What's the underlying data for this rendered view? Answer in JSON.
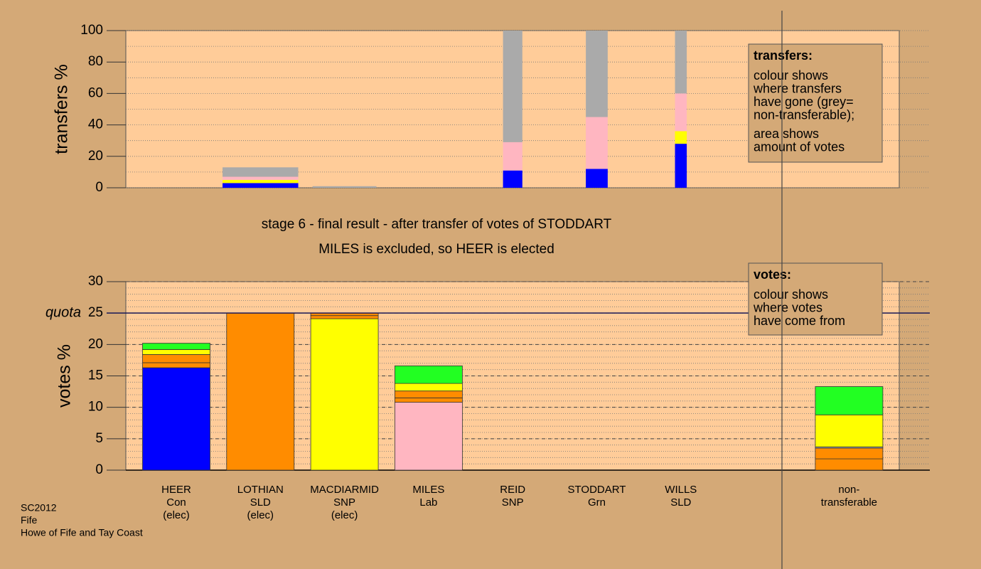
{
  "chart_data": [
    {
      "type": "bar",
      "stacked": true,
      "ylabel": "transfers %",
      "ylim": [
        0,
        100
      ],
      "yticks": [
        0,
        20,
        40,
        60,
        80,
        100
      ],
      "minor_step": 10,
      "amounts": [
        null,
        0.9,
        0.76,
        null,
        0.23,
        0.26,
        0.14,
        null,
        null
      ],
      "segments": [
        null,
        [
          {
            "color": "#0000ff",
            "value": 3
          },
          {
            "color": "#ffff00",
            "value": 2
          },
          {
            "color": "#ffb6c1",
            "value": 2
          },
          {
            "color": "#aaaaaa",
            "value": 6
          }
        ],
        [
          {
            "color": "#aaaaaa",
            "value": 1
          }
        ],
        null,
        [
          {
            "color": "#0000ff",
            "value": 11
          },
          {
            "color": "#ffb6c1",
            "value": 18
          },
          {
            "color": "#aaaaaa",
            "value": 71
          }
        ],
        [
          {
            "color": "#0000ff",
            "value": 12
          },
          {
            "color": "#ffb6c1",
            "value": 33
          },
          {
            "color": "#aaaaaa",
            "value": 55
          }
        ],
        [
          {
            "color": "#0000ff",
            "value": 28
          },
          {
            "color": "#ffff00",
            "value": 8
          },
          {
            "color": "#ffb6c1",
            "value": 24
          },
          {
            "color": "#aaaaaa",
            "value": 40
          }
        ],
        null,
        null
      ],
      "legend": {
        "title": "transfers:",
        "paragraphs": [
          [
            "colour shows",
            "where transfers",
            "have gone (grey=",
            "non-transferable);"
          ],
          [
            "area shows",
            "amount of votes"
          ]
        ]
      }
    },
    {
      "type": "bar",
      "stacked": true,
      "ylabel": "votes %",
      "ylim": [
        0,
        30
      ],
      "yticks": [
        0,
        5,
        10,
        15,
        20,
        25,
        30
      ],
      "minor_step": 1,
      "quota": 25,
      "quota_label": "quota",
      "categories": [
        [
          "HEER",
          "Con",
          "(elec)"
        ],
        [
          "LOTHIAN",
          "SLD",
          "(elec)"
        ],
        [
          "MACDIARMID",
          "SNP",
          "(elec)"
        ],
        [
          "MILES",
          "Lab"
        ],
        [
          "REID",
          "SNP"
        ],
        [
          "STODDART",
          "Grn"
        ],
        [
          "WILLS",
          "SLD"
        ],
        null,
        [
          "non-",
          "transferable"
        ]
      ],
      "segments": [
        [
          {
            "color": "#0000ff",
            "value": 16.3
          },
          {
            "color": "#ff8c00",
            "value": 0.8
          },
          {
            "color": "#ff8c00",
            "value": 1.3
          },
          {
            "color": "#ffff00",
            "value": 0.8
          },
          {
            "color": "#22ff22",
            "value": 1.0
          }
        ],
        [
          {
            "color": "#ff8c00",
            "value": 25
          }
        ],
        [
          {
            "color": "#ffff00",
            "value": 24.1
          },
          {
            "color": "#ff8c00",
            "value": 0.5
          },
          {
            "color": "#ff8c00",
            "value": 0.4
          }
        ],
        [
          {
            "color": "#ffb6c1",
            "value": 10.8
          },
          {
            "color": "#ff8c00",
            "value": 0.7
          },
          {
            "color": "#ff8c00",
            "value": 1.1
          },
          {
            "color": "#ffff00",
            "value": 1.2
          },
          {
            "color": "#22ff22",
            "value": 2.8
          }
        ],
        [
          {
            "color": "#ff8c00",
            "value": 0
          }
        ],
        [
          {
            "color": "#ff8c00",
            "value": 0
          }
        ],
        [
          {
            "color": "#ff8c00",
            "value": 0
          }
        ],
        null,
        [
          {
            "color": "#ff8c00",
            "value": 1.8
          },
          {
            "color": "#ff8c00",
            "value": 1.7
          },
          {
            "color": "#aaaaaa",
            "value": 0.2
          },
          {
            "color": "#ffff00",
            "value": 5.1
          },
          {
            "color": "#22ff22",
            "value": 4.5
          }
        ]
      ],
      "legend": {
        "title": "votes:",
        "paragraphs": [
          [
            "colour shows",
            "where votes",
            "have come from"
          ]
        ]
      }
    }
  ],
  "caption": [
    "stage 6 - final result - after transfer of votes of STODDART",
    "MILES is excluded, so HEER is elected"
  ],
  "footer": [
    "SC2012",
    "Fife",
    "Howe of Fife and Tay Coast"
  ]
}
